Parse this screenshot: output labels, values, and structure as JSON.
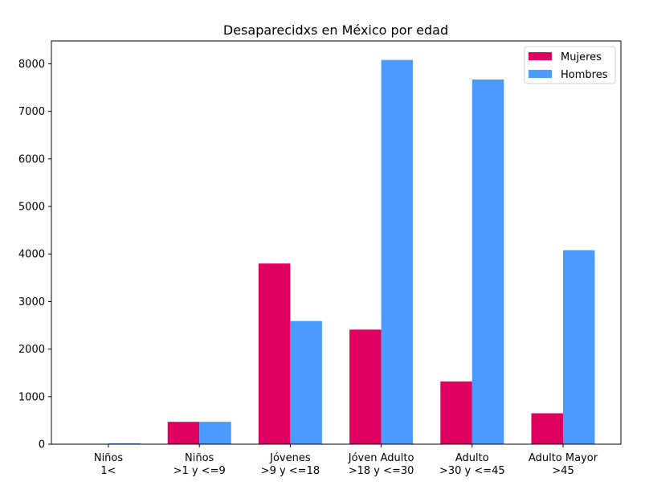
{
  "chart_data": {
    "type": "bar",
    "title": "Desaparecidxs en México por edad",
    "xlabel": "",
    "ylabel": "",
    "categories": [
      [
        "Niños",
        "1<"
      ],
      [
        "Niños",
        ">1 y <=9"
      ],
      [
        "Jóvenes",
        ">9 y <=18"
      ],
      [
        "Jóven Adulto",
        ">18 y <=30"
      ],
      [
        "Adulto",
        ">30 y <=45"
      ],
      [
        "Adulto Mayor",
        ">45"
      ]
    ],
    "series": [
      {
        "name": "Mujeres",
        "color": "#df0062",
        "values": [
          5,
          470,
          3800,
          2410,
          1320,
          650
        ]
      },
      {
        "name": "Hombres",
        "color": "#4a9aff",
        "values": [
          20,
          470,
          2590,
          8080,
          7670,
          4080
        ]
      }
    ],
    "ylim": [
      0,
      8480
    ],
    "yticks": [
      0,
      1000,
      2000,
      3000,
      4000,
      5000,
      6000,
      7000,
      8000
    ],
    "grid": false,
    "legend_position": "upper right"
  }
}
